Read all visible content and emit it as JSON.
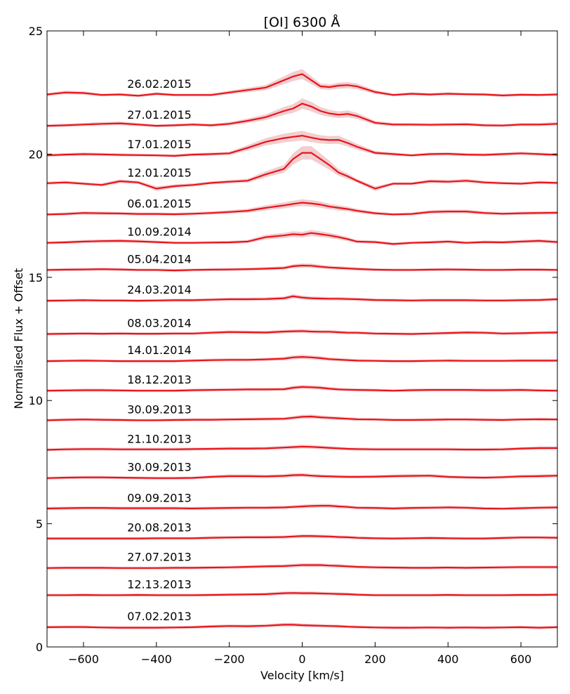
{
  "chart_data": {
    "type": "line",
    "title": "[OI] 6300 Å",
    "xlabel": "Velocity [km/s]",
    "ylabel": "Normalised Flux + Offset",
    "xlim": [
      -700,
      700
    ],
    "ylim": [
      0,
      25
    ],
    "xticks": [
      -600,
      -400,
      -200,
      0,
      200,
      400,
      600
    ],
    "xtick_labels": [
      "−600",
      "−400",
      "−200",
      "0",
      "200",
      "400",
      "600"
    ],
    "yticks": [
      0,
      5,
      10,
      15,
      20,
      25
    ],
    "ytick_labels": [
      "0",
      "5",
      "10",
      "15",
      "20",
      "25"
    ],
    "grid": false,
    "line_color": "#e8141b",
    "band_color": "#e8a6aa",
    "label_x": -480,
    "x": [
      -700,
      -650,
      -600,
      -550,
      -500,
      -450,
      -400,
      -350,
      -300,
      -250,
      -200,
      -150,
      -100,
      -50,
      -25,
      0,
      25,
      50,
      75,
      100,
      125,
      150,
      200,
      250,
      300,
      350,
      400,
      450,
      500,
      550,
      600,
      650,
      700
    ],
    "series": [
      {
        "name": "07.02.2013",
        "offset": 0.8,
        "values": [
          0,
          0.01,
          0.01,
          -0.01,
          -0.02,
          -0.02,
          -0.02,
          -0.01,
          0,
          0.03,
          0.05,
          0.04,
          0.06,
          0.1,
          0.1,
          0.08,
          0.07,
          0.06,
          0.05,
          0.04,
          0.02,
          0.01,
          -0.01,
          -0.02,
          -0.02,
          -0.01,
          -0.02,
          -0.01,
          -0.02,
          -0.01,
          0,
          -0.02,
          0
        ]
      },
      {
        "name": "12.13.2013",
        "offset": 2.1,
        "values": [
          0,
          0,
          0.01,
          0,
          0,
          0.01,
          0,
          0,
          0,
          0.01,
          0.02,
          0.03,
          0.04,
          0.08,
          0.09,
          0.08,
          0.08,
          0.07,
          0.06,
          0.05,
          0.04,
          0.02,
          0,
          0,
          0,
          0,
          0.01,
          0,
          0,
          0,
          0.01,
          0.01,
          0.02
        ]
      },
      {
        "name": "27.07.2013",
        "offset": 3.2,
        "values": [
          0,
          0.01,
          0.01,
          0.01,
          0,
          0,
          0,
          0.01,
          0.01,
          0.02,
          0.03,
          0.05,
          0.07,
          0.08,
          0.1,
          0.12,
          0.12,
          0.12,
          0.1,
          0.09,
          0.07,
          0.05,
          0.03,
          0.02,
          0.01,
          0.01,
          0.02,
          0.01,
          0.02,
          0.03,
          0.04,
          0.04,
          0.04
        ]
      },
      {
        "name": "20.08.2013",
        "offset": 4.4,
        "values": [
          0,
          0,
          0,
          0,
          0,
          0,
          0.01,
          0.01,
          0.01,
          0.03,
          0.04,
          0.05,
          0.05,
          0.06,
          0.08,
          0.1,
          0.1,
          0.09,
          0.08,
          0.06,
          0.05,
          0.03,
          0.01,
          0,
          0.01,
          0.02,
          0.01,
          0,
          0,
          0.02,
          0.04,
          0.04,
          0.03
        ]
      },
      {
        "name": "09.09.2013",
        "offset": 5.6,
        "values": [
          0.02,
          0.03,
          0.04,
          0.04,
          0.03,
          0.03,
          0.03,
          0.03,
          0.02,
          0.03,
          0.04,
          0.05,
          0.05,
          0.06,
          0.08,
          0.1,
          0.12,
          0.13,
          0.13,
          0.1,
          0.08,
          0.05,
          0.04,
          0.02,
          0.04,
          0.05,
          0.06,
          0.05,
          0.02,
          0.01,
          0.03,
          0.05,
          0.06
        ]
      },
      {
        "name": "30.09.2013",
        "offset": 6.85,
        "values": [
          0,
          0.02,
          0.03,
          0.03,
          0.02,
          0.01,
          0,
          0,
          0.01,
          0.05,
          0.08,
          0.08,
          0.07,
          0.09,
          0.12,
          0.13,
          0.1,
          0.08,
          0.07,
          0.06,
          0.05,
          0.05,
          0.06,
          0.08,
          0.09,
          0.1,
          0.05,
          0.03,
          0.02,
          0.04,
          0.07,
          0.08,
          0.1
        ]
      },
      {
        "name": "21.10.2013",
        "offset": 8.0,
        "values": [
          0,
          0.02,
          0.03,
          0.03,
          0.02,
          0.02,
          0.02,
          0.02,
          0.03,
          0.04,
          0.05,
          0.05,
          0.06,
          0.09,
          0.11,
          0.13,
          0.12,
          0.1,
          0.08,
          0.06,
          0.04,
          0.03,
          0.02,
          0.02,
          0.02,
          0.02,
          0.02,
          0.01,
          0.01,
          0.02,
          0.05,
          0.07,
          0.07
        ]
      },
      {
        "name": "30.09.2013 ",
        "offset": 9.2,
        "values": [
          0,
          0.02,
          0.03,
          0.02,
          0.01,
          0,
          0,
          0.01,
          0.02,
          0.02,
          0.03,
          0.04,
          0.05,
          0.06,
          0.1,
          0.14,
          0.15,
          0.12,
          0.1,
          0.08,
          0.06,
          0.04,
          0.03,
          0.01,
          0.01,
          0.02,
          0.03,
          0.03,
          0.02,
          0.01,
          0.03,
          0.04,
          0.03
        ]
      },
      {
        "name": "18.12.2013",
        "offset": 10.4,
        "values": [
          0,
          0.01,
          0.02,
          0.02,
          0.01,
          0,
          0,
          0,
          0.02,
          0.03,
          0.04,
          0.05,
          0.05,
          0.06,
          0.12,
          0.15,
          0.14,
          0.12,
          0.08,
          0.05,
          0.04,
          0.03,
          0.02,
          0,
          0.02,
          0.03,
          0.03,
          0.03,
          0.02,
          0.02,
          0.03,
          0.01,
          0
        ]
      },
      {
        "name": "14.01.2014",
        "offset": 11.6,
        "values": [
          0,
          0.01,
          0.02,
          0.01,
          0,
          0,
          0,
          0,
          0.02,
          0.04,
          0.05,
          0.05,
          0.07,
          0.1,
          0.15,
          0.17,
          0.15,
          0.12,
          0.08,
          0.06,
          0.04,
          0.02,
          0.01,
          0,
          0,
          0.01,
          0.02,
          0.01,
          0.01,
          0.01,
          0.02,
          0.02,
          0.02
        ]
      },
      {
        "name": "08.03.2014",
        "offset": 12.7,
        "values": [
          0,
          0.01,
          0.02,
          0.01,
          0.02,
          0.01,
          0.01,
          0.02,
          0.02,
          0.05,
          0.08,
          0.07,
          0.06,
          0.1,
          0.11,
          0.12,
          0.1,
          0.09,
          0.09,
          0.07,
          0.05,
          0.05,
          0.02,
          0.01,
          0,
          0.02,
          0.04,
          0.06,
          0.05,
          0.02,
          0.03,
          0.05,
          0.06
        ]
      },
      {
        "name": "24.03.2014",
        "offset": 14.05,
        "values": [
          0,
          0.01,
          0.02,
          0.01,
          0.01,
          0,
          0.01,
          0.02,
          0.02,
          0.04,
          0.06,
          0.06,
          0.07,
          0.1,
          0.18,
          0.13,
          0.1,
          0.09,
          0.08,
          0.08,
          0.07,
          0.06,
          0.03,
          0.02,
          0.01,
          0.02,
          0.02,
          0.02,
          0.01,
          0.01,
          0.02,
          0.03,
          0.06
        ]
      },
      {
        "name": "05.04.2014",
        "offset": 15.3,
        "values": [
          0,
          0.01,
          0.02,
          0.03,
          0.02,
          0,
          0,
          -0.02,
          0,
          0.01,
          0.02,
          0.03,
          0.05,
          0.08,
          0.15,
          0.18,
          0.17,
          0.13,
          0.1,
          0.08,
          0.06,
          0.04,
          0.01,
          0,
          0,
          0.01,
          0.02,
          0.01,
          0,
          0,
          0.01,
          0.01,
          0
        ]
      },
      {
        "name": "10.09.2014",
        "offset": 16.4,
        "values": [
          0,
          0.02,
          0.05,
          0.07,
          0.08,
          0.06,
          0.03,
          0,
          0,
          0.01,
          0.02,
          0.05,
          0.23,
          0.3,
          0.35,
          0.33,
          0.4,
          0.35,
          0.3,
          0.23,
          0.15,
          0.05,
          0.03,
          -0.05,
          0,
          0.02,
          0.05,
          0,
          0.03,
          0.02,
          0.05,
          0.08,
          0.03
        ]
      },
      {
        "name": "06.01.2015",
        "offset": 17.55,
        "values": [
          0,
          0.02,
          0.06,
          0.05,
          0.04,
          0.02,
          0.02,
          0.01,
          0.03,
          0.06,
          0.1,
          0.15,
          0.27,
          0.37,
          0.43,
          0.48,
          0.45,
          0.4,
          0.32,
          0.27,
          0.22,
          0.15,
          0.05,
          0,
          0.02,
          0.1,
          0.12,
          0.12,
          0.06,
          0.03,
          0.05,
          0.06,
          0.07
        ]
      },
      {
        "name": "12.01.2015",
        "offset": 18.8,
        "values": [
          0.02,
          0.05,
          0,
          -0.05,
          0.1,
          0.05,
          -0.2,
          -0.1,
          -0.05,
          0.03,
          0.08,
          0.12,
          0.38,
          0.6,
          1.0,
          1.25,
          1.25,
          1.0,
          0.75,
          0.45,
          0.3,
          0.12,
          -0.2,
          0,
          0,
          0.1,
          0.08,
          0.12,
          0.05,
          0.02,
          0,
          0.05,
          0.03
        ]
      },
      {
        "name": "17.01.2015",
        "offset": 19.95,
        "values": [
          0,
          0.03,
          0.05,
          0.04,
          0.02,
          0.01,
          0,
          -0.02,
          0.03,
          0.05,
          0.08,
          0.3,
          0.55,
          0.7,
          0.75,
          0.8,
          0.72,
          0.65,
          0.62,
          0.63,
          0.5,
          0.35,
          0.1,
          0.05,
          0,
          0.05,
          0.06,
          0.03,
          0.02,
          0.05,
          0.08,
          0.05,
          0.02
        ]
      },
      {
        "name": "27.01.2015",
        "offset": 21.15,
        "values": [
          0,
          0.02,
          0.05,
          0.08,
          0.1,
          0.05,
          0,
          0.02,
          0.05,
          0.02,
          0.08,
          0.2,
          0.35,
          0.6,
          0.7,
          0.9,
          0.78,
          0.6,
          0.5,
          0.45,
          0.48,
          0.4,
          0.12,
          0.05,
          0.05,
          0.04,
          0.05,
          0.06,
          0.02,
          0.01,
          0.05,
          0.05,
          0.08
        ]
      },
      {
        "name": "26.02.2015",
        "offset": 22.4,
        "values": [
          0.02,
          0.1,
          0.08,
          0,
          0.02,
          -0.03,
          0.05,
          0,
          0,
          0,
          0.1,
          0.2,
          0.3,
          0.6,
          0.75,
          0.85,
          0.6,
          0.35,
          0.32,
          0.38,
          0.4,
          0.35,
          0.12,
          0,
          0.05,
          0.02,
          0.05,
          0.03,
          0.02,
          -0.02,
          0.01,
          0,
          0.02
        ]
      }
    ]
  }
}
